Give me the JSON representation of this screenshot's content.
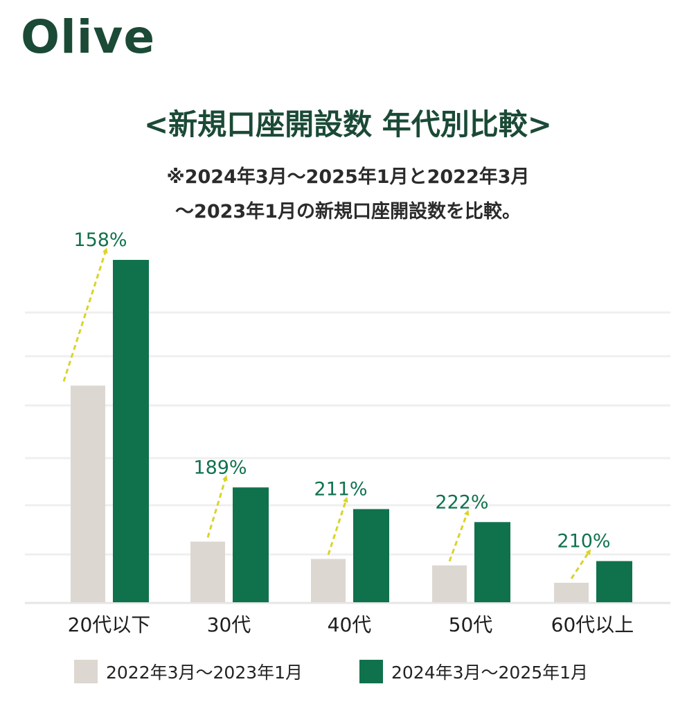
{
  "logo": "Olive",
  "title": "<新規口座開設数 年代別比較>",
  "note_line1": "※2024年3月～2025年1月と2022年3月",
  "note_line2": "～2023年1月の新規口座開設数を比較。",
  "colors": {
    "brand": "#1b4a36",
    "series_prev": "#dcd8d1",
    "series_curr": "#10724d",
    "arrow": "#d9d427",
    "pct_text": "#10724d"
  },
  "chart_data": {
    "type": "bar",
    "categories": [
      "20代以下",
      "30代",
      "40代",
      "50代",
      "60代以上"
    ],
    "series": [
      {
        "name": "2022年3月～2023年1月",
        "values": [
          100,
          28,
          20,
          17,
          9
        ]
      },
      {
        "name": "2024年3月～2025年1月",
        "values": [
          158,
          53,
          43,
          37,
          19
        ]
      }
    ],
    "growth_labels": [
      "158%",
      "189%",
      "211%",
      "222%",
      "210%"
    ],
    "ylim": [
      0,
      160
    ],
    "grid": true,
    "legend_position": "bottom"
  }
}
